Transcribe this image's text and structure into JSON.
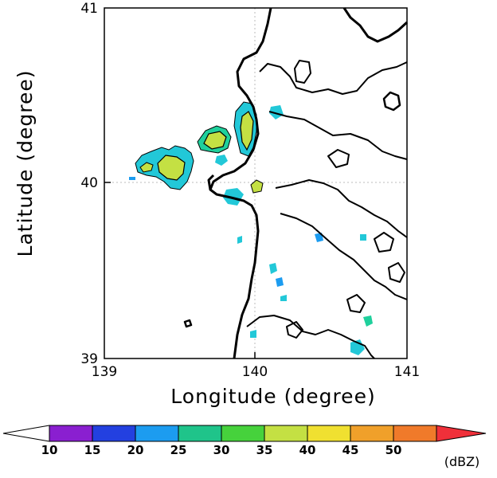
{
  "map": {
    "x_axis": {
      "title": "Longitude (degree)",
      "ticks": [
        "139",
        "140",
        "141"
      ],
      "range": [
        139,
        141
      ]
    },
    "y_axis": {
      "title": "Latitude (degree)",
      "ticks": [
        "41",
        "40",
        "39"
      ],
      "range": [
        39,
        41
      ]
    },
    "coastline_color": "#000000",
    "gridline_color": "#bbbbbb"
  },
  "colorbar": {
    "labels": [
      "10",
      "15",
      "20",
      "25",
      "30",
      "35",
      "40",
      "45",
      "50"
    ],
    "unit": "(dBZ)",
    "colors": {
      "below": "#ffffff",
      "bins": [
        "#8a1fd0",
        "#2340e0",
        "#1c9cf0",
        "#1fc48a",
        "#46d23c",
        "#c4e043",
        "#f0e030",
        "#f0a02a",
        "#f07a2a"
      ],
      "above": "#f0303a"
    }
  },
  "echo_colors": {
    "cyan": "#22c8d8",
    "green": "#1fd09c",
    "yellow_green": "#c4e043",
    "blue": "#1c9cf0"
  }
}
